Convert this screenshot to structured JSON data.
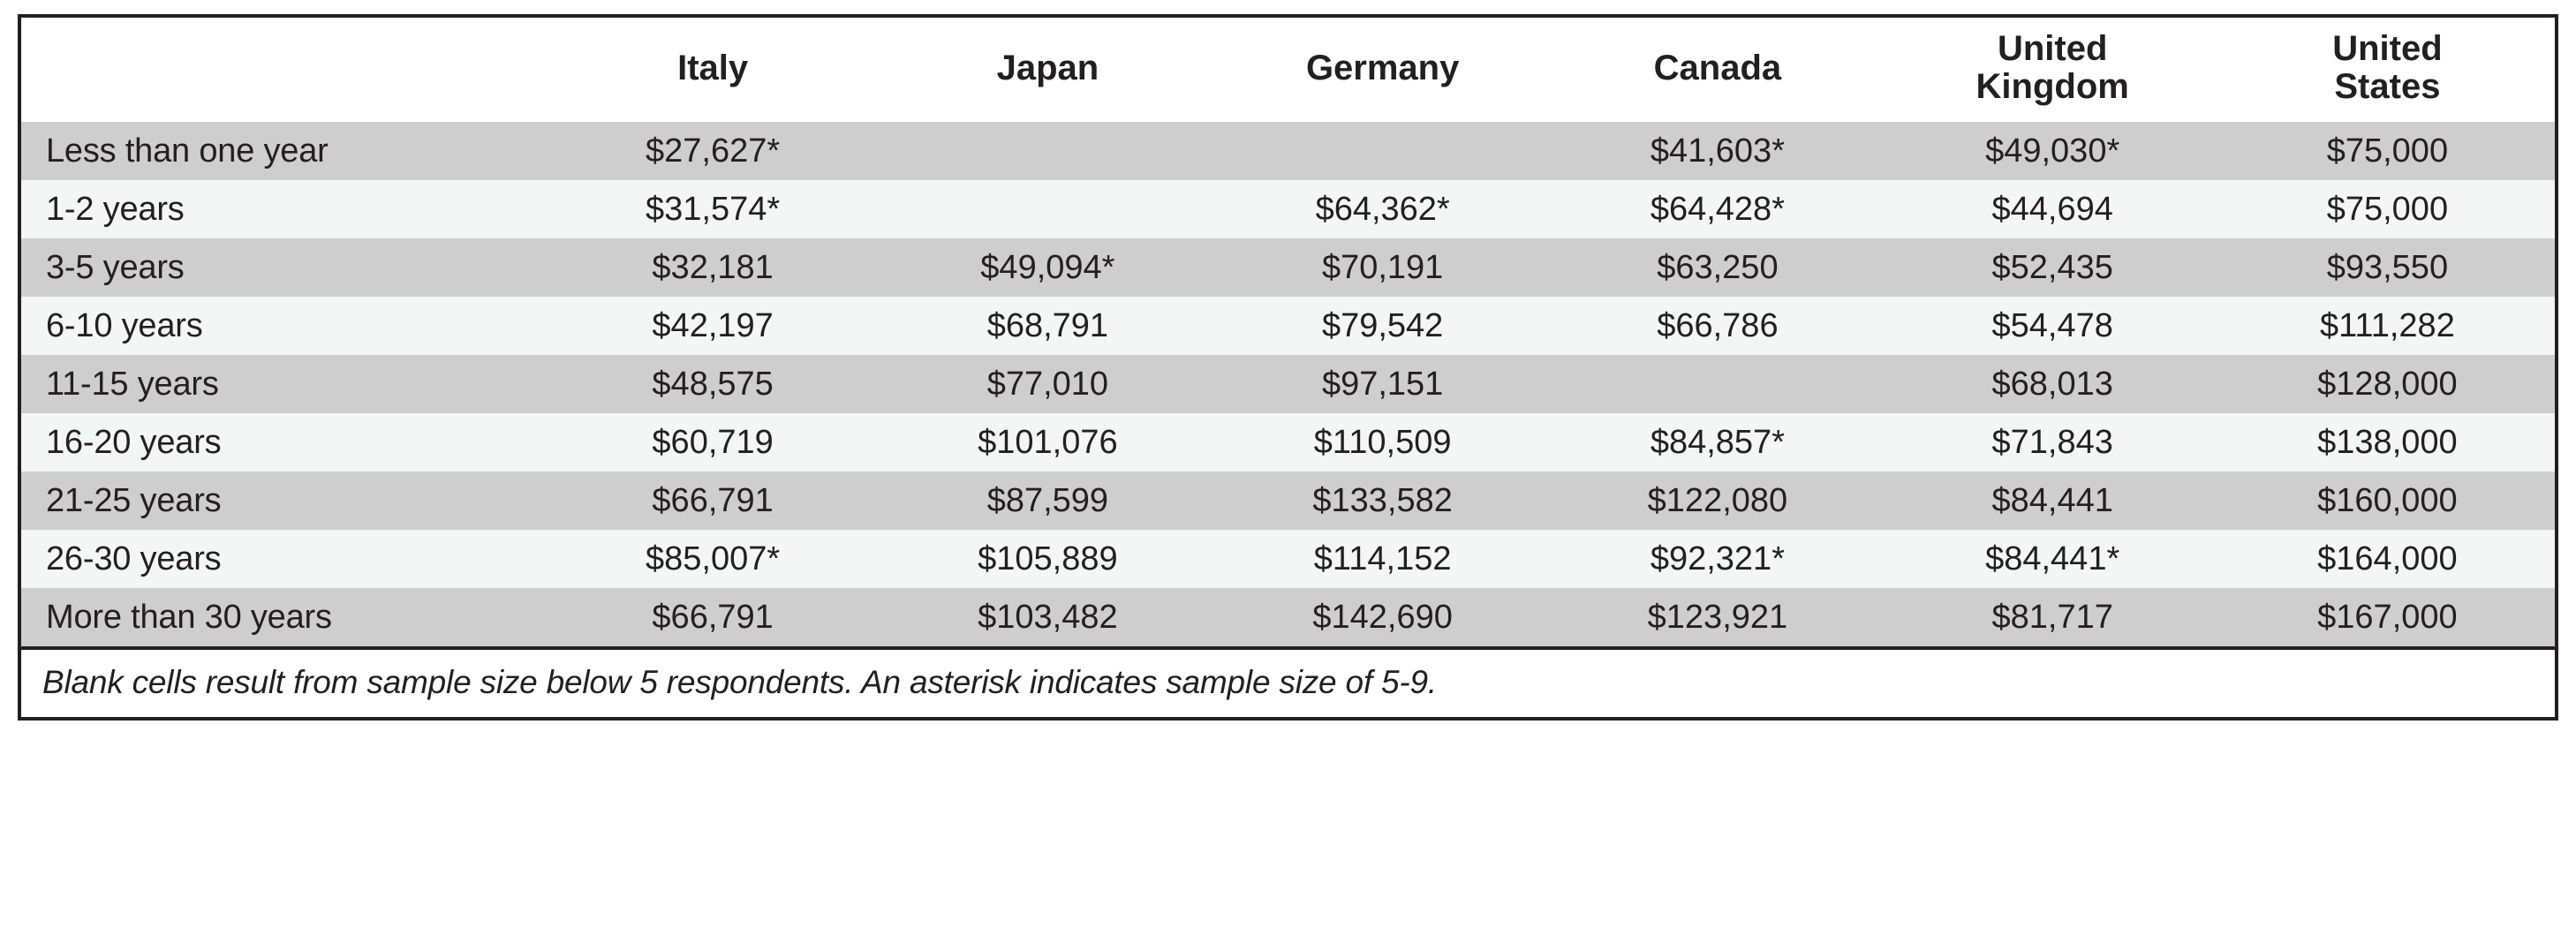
{
  "table": {
    "type": "table",
    "background_color": "#ffffff",
    "border_color": "#231f20",
    "text_color": "#231f20",
    "stripe_colors": [
      "#cecece",
      "#f4f5f5"
    ],
    "header_bg": "#ffffff",
    "header_font_weight": 800,
    "body_font_weight": 400,
    "header_fontsize_pt": 30,
    "body_fontsize_pt": 28,
    "footnote_fontsize_pt": 27,
    "row_label_align": "left",
    "data_align": "center",
    "column_widths_pct": [
      21,
      13.1666,
      13.1666,
      13.1666,
      13.1666,
      13.1666,
      13.1666
    ],
    "columns": [
      "",
      "Italy",
      "Japan",
      "Germany",
      "Canada",
      "United Kingdom",
      "United States"
    ],
    "rows": [
      [
        "Less than one year",
        "$27,627*",
        "",
        "",
        "$41,603*",
        "$49,030*",
        "$75,000"
      ],
      [
        "1-2 years",
        "$31,574*",
        "",
        "$64,362*",
        "$64,428*",
        "$44,694",
        "$75,000"
      ],
      [
        "3-5 years",
        "$32,181",
        "$49,094*",
        "$70,191",
        "$63,250",
        "$52,435",
        "$93,550"
      ],
      [
        "6-10 years",
        "$42,197",
        "$68,791",
        "$79,542",
        "$66,786",
        "$54,478",
        "$111,282"
      ],
      [
        "11-15 years",
        "$48,575",
        "$77,010",
        "$97,151",
        "",
        "$68,013",
        "$128,000"
      ],
      [
        "16-20 years",
        "$60,719",
        "$101,076",
        "$110,509",
        "$84,857*",
        "$71,843",
        "$138,000"
      ],
      [
        "21-25 years",
        "$66,791",
        "$87,599",
        "$133,582",
        "$122,080",
        "$84,441",
        "$160,000"
      ],
      [
        "26-30 years",
        "$85,007*",
        "$105,889",
        "$114,152",
        "$92,321*",
        "$84,441*",
        "$164,000"
      ],
      [
        "More than 30 years",
        "$66,791",
        "$103,482",
        "$142,690",
        "$123,921",
        "$81,717",
        "$167,000"
      ]
    ],
    "footnote": "Blank cells result from sample size below 5 respondents. An asterisk indicates sample size of 5-9."
  }
}
